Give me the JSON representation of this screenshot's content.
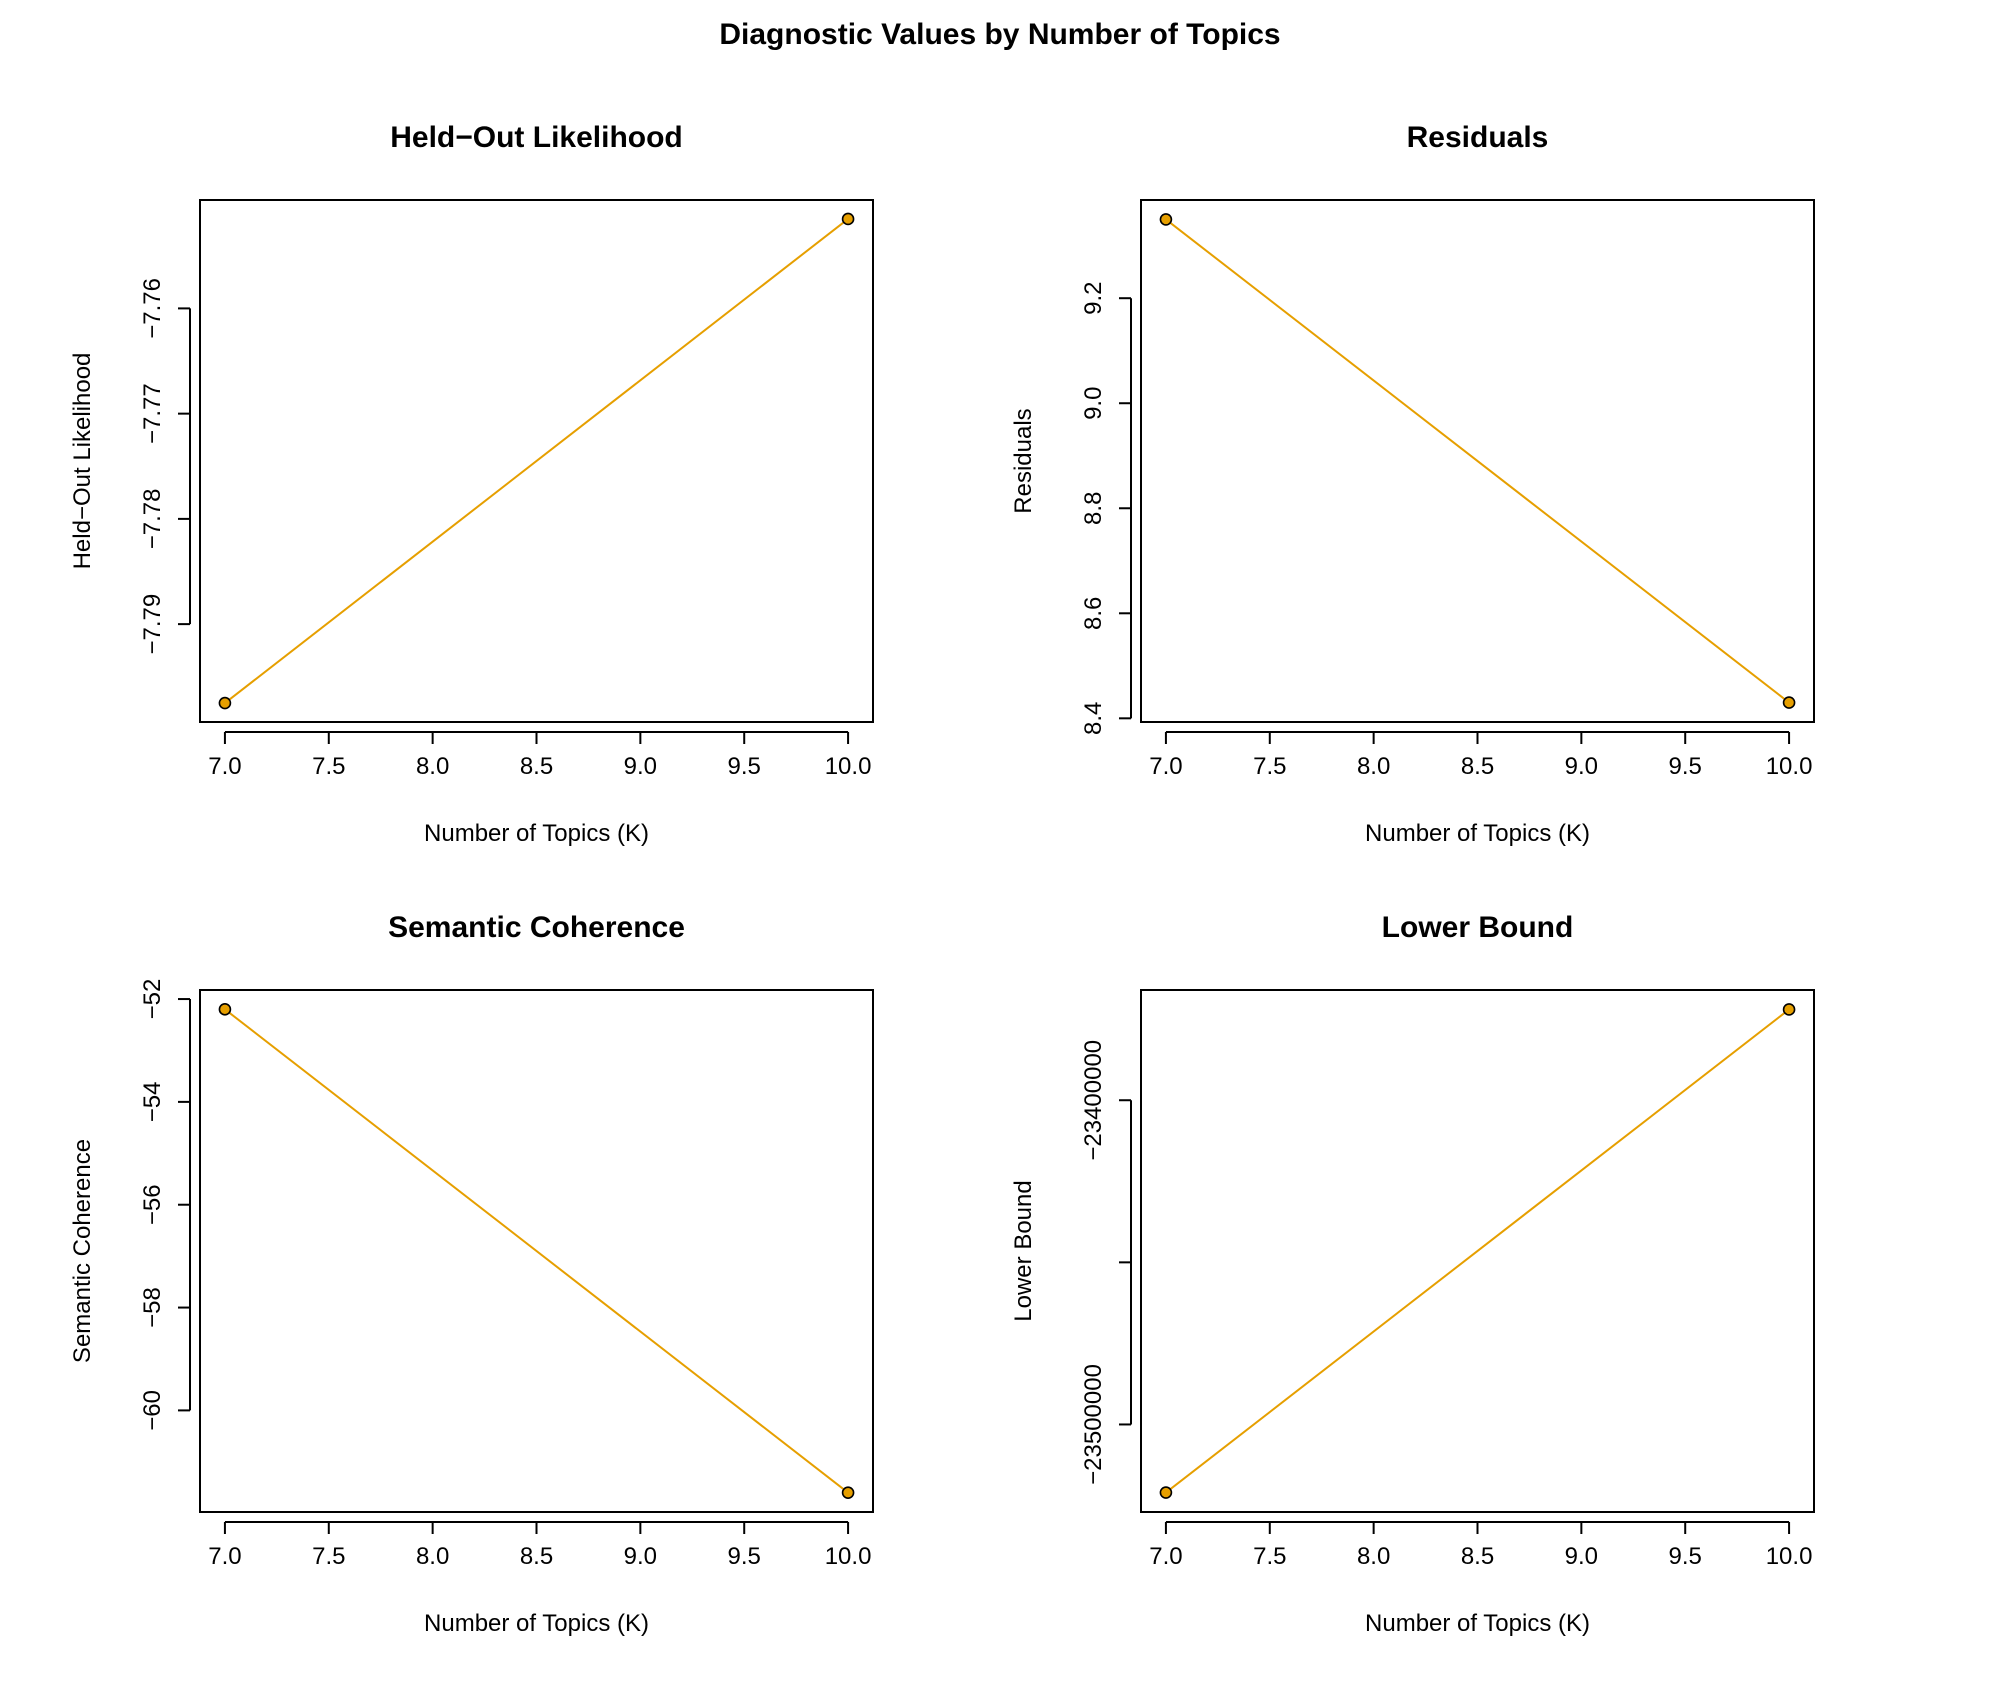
{
  "figure": {
    "title": "Diagnostic Values by Number of Topics"
  },
  "colors": {
    "line": "#E69F00",
    "point_stroke": "#000000",
    "axis": "#000000"
  },
  "chart_data": [
    {
      "type": "line",
      "title": "Held−Out Likelihood",
      "xlabel": "Number of Topics (K)",
      "ylabel": "Held−Out Likelihood",
      "x": [
        7,
        10
      ],
      "series": [
        {
          "values": [
            -7.7975,
            -7.7515
          ]
        }
      ],
      "xlim": [
        6.88,
        10.12
      ],
      "ylim": [
        -7.7993,
        -7.7497
      ],
      "x_ticks": [
        "7.0",
        "7.5",
        "8.0",
        "8.5",
        "9.0",
        "9.5",
        "10.0"
      ],
      "y_ticks": [
        "−7.79",
        "−7.78",
        "−7.77",
        "−7.76"
      ],
      "grid": false
    },
    {
      "type": "line",
      "title": "Residuals",
      "xlabel": "Number of Topics (K)",
      "ylabel": "Residuals",
      "x": [
        7,
        10
      ],
      "series": [
        {
          "values": [
            9.35,
            8.43
          ]
        }
      ],
      "xlim": [
        6.88,
        10.12
      ],
      "ylim": [
        8.393,
        9.387
      ],
      "x_ticks": [
        "7.0",
        "7.5",
        "8.0",
        "8.5",
        "9.0",
        "9.5",
        "10.0"
      ],
      "y_ticks": [
        "8.4",
        "8.6",
        "8.8",
        "9.0",
        "9.2"
      ],
      "grid": false
    },
    {
      "type": "line",
      "title": "Semantic Coherence",
      "xlabel": "Number of Topics (K)",
      "ylabel": "Semantic Coherence",
      "x": [
        7,
        10
      ],
      "series": [
        {
          "values": [
            -52.2,
            -61.6
          ]
        }
      ],
      "xlim": [
        6.88,
        10.12
      ],
      "ylim": [
        -61.976,
        -51.824
      ],
      "x_ticks": [
        "7.0",
        "7.5",
        "8.0",
        "8.5",
        "9.0",
        "9.5",
        "10.0"
      ],
      "y_ticks": [
        "−60",
        "−58",
        "−56",
        "−54",
        "−52"
      ],
      "grid": false
    },
    {
      "type": "line",
      "title": "Lower Bound",
      "xlabel": "Number of Topics (K)",
      "ylabel": "Lower Bound",
      "x": [
        7,
        10
      ],
      "series": [
        {
          "values": [
            -23521000,
            -23372000
          ]
        }
      ],
      "xlim": [
        6.88,
        10.12
      ],
      "ylim": [
        -23527000,
        -23366000
      ],
      "x_ticks": [
        "7.0",
        "7.5",
        "8.0",
        "8.5",
        "9.0",
        "9.5",
        "10.0"
      ],
      "y_ticks": [
        "−23500000",
        "",
        "−23400000"
      ],
      "grid": false
    }
  ]
}
